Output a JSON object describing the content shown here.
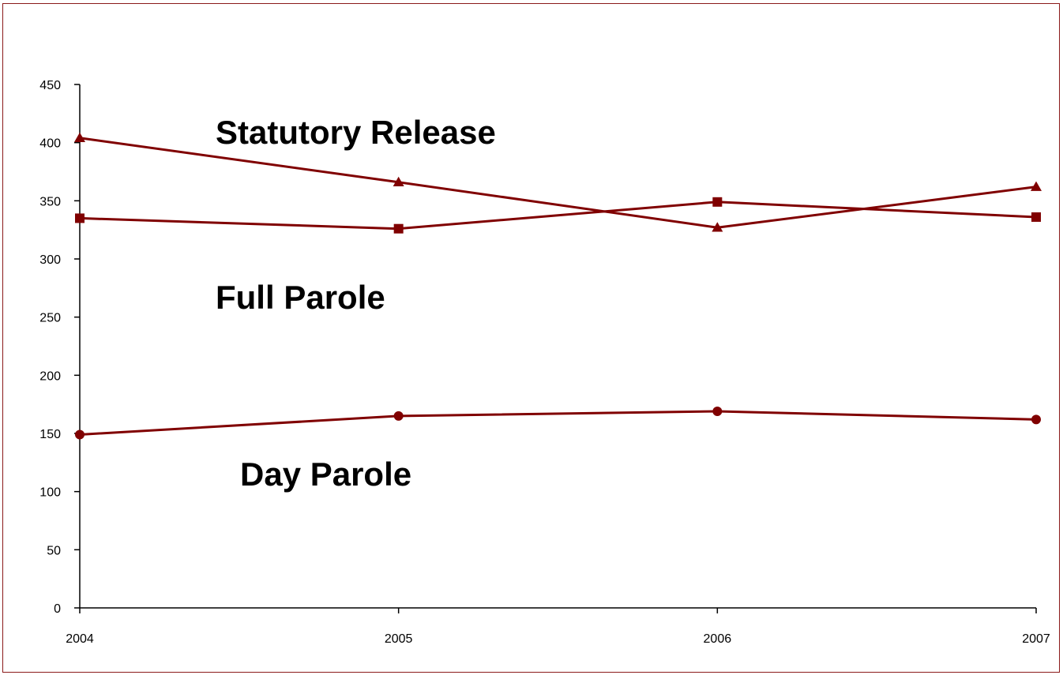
{
  "colors": {
    "series": "#800000",
    "axis": "#000000",
    "frame": "#8b1a1a"
  },
  "chart_data": {
    "type": "line",
    "title": "",
    "xlabel": "",
    "ylabel": "",
    "grid": false,
    "legend": "none",
    "categories": [
      "2004",
      "2005",
      "2006",
      "2007"
    ],
    "yticks": [
      "0",
      "50",
      "100",
      "150",
      "200",
      "250",
      "300",
      "350",
      "400",
      "450"
    ],
    "ylim": [
      0,
      450
    ],
    "series": [
      {
        "name": "Statutory Release",
        "marker": "triangle",
        "values": [
          404,
          366,
          327,
          362
        ]
      },
      {
        "name": "Full Parole",
        "marker": "square",
        "values": [
          335,
          326,
          349,
          336
        ]
      },
      {
        "name": "Day Parole",
        "marker": "circle",
        "values": [
          149,
          165,
          169,
          162
        ]
      }
    ]
  }
}
